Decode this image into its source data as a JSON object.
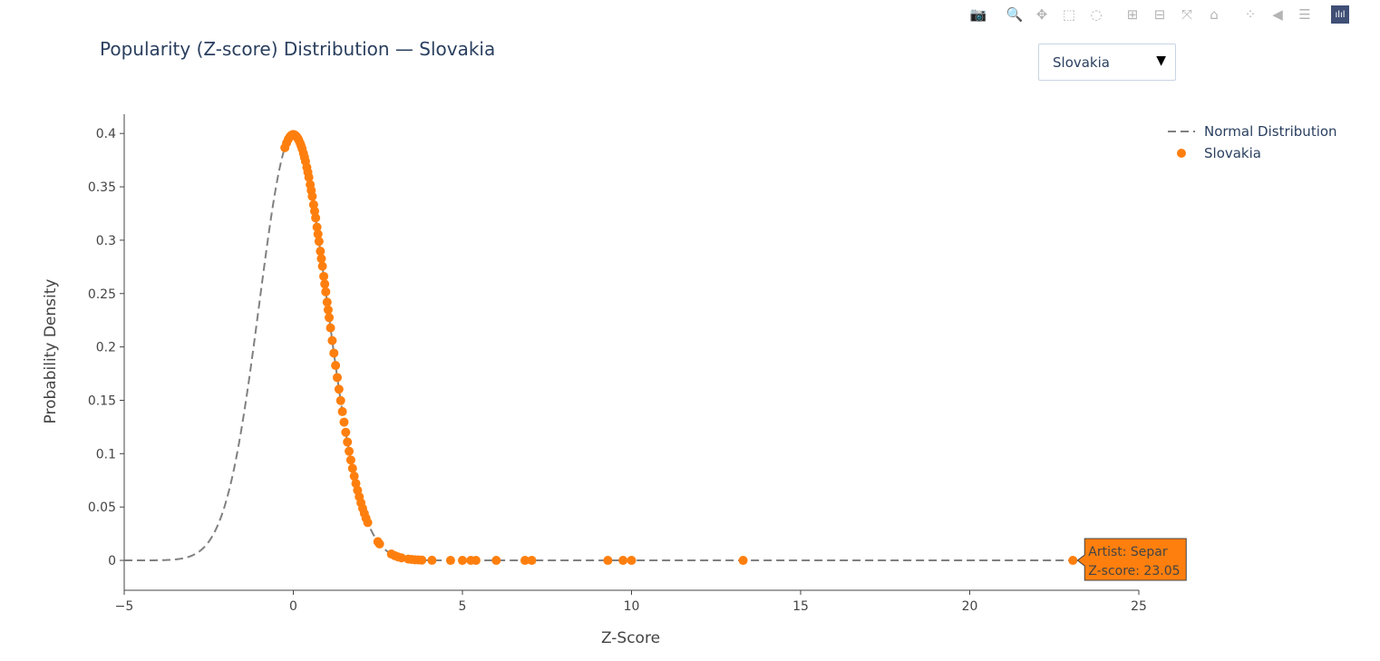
{
  "page": {
    "title": "Popularity (Z-score) Distribution — Slovakia",
    "dropdown": {
      "selected": "Slovakia",
      "arrow": "▼"
    }
  },
  "modebar": [
    {
      "name": "camera-icon",
      "glyph": "📷"
    },
    {
      "name": "zoom-icon",
      "glyph": "🔍"
    },
    {
      "name": "pan-icon",
      "glyph": "✥"
    },
    {
      "name": "box-select-icon",
      "glyph": "⬚"
    },
    {
      "name": "lasso-select-icon",
      "glyph": "◌"
    },
    {
      "name": "zoom-in-icon",
      "glyph": "⊞"
    },
    {
      "name": "zoom-out-icon",
      "glyph": "⊟"
    },
    {
      "name": "autoscale-icon",
      "glyph": "⤧"
    },
    {
      "name": "reset-axes-icon",
      "glyph": "⌂"
    },
    {
      "name": "spike-lines-icon",
      "glyph": "⁘"
    },
    {
      "name": "hover-closest-icon",
      "glyph": "◀"
    },
    {
      "name": "hover-compare-icon",
      "glyph": "☰"
    },
    {
      "name": "plotly-logo-icon",
      "glyph": "ılıl"
    }
  ],
  "chart_data": {
    "type": "scatter",
    "xlabel": "Z-Score",
    "ylabel": "Probability Density",
    "xlim": [
      -5,
      25
    ],
    "ylim": [
      -0.028,
      0.418
    ],
    "xticks": [
      -5,
      0,
      5,
      10,
      15,
      20,
      25
    ],
    "xtick_labels": [
      "−5",
      "0",
      "5",
      "10",
      "15",
      "20",
      "25"
    ],
    "yticks": [
      0,
      0.05,
      0.1,
      0.15,
      0.2,
      0.25,
      0.3,
      0.35,
      0.4
    ],
    "ytick_labels": [
      "0",
      "0.05",
      "0.1",
      "0.15",
      "0.2",
      "0.25",
      "0.3",
      "0.35",
      "0.4"
    ],
    "grid": false,
    "legend_position": "top-right",
    "series": [
      {
        "name": "Normal Distribution",
        "kind": "line",
        "dash": "dashed",
        "color": "#808080",
        "function": "standard normal pdf",
        "x_range": [
          -5,
          25
        ]
      },
      {
        "name": "Slovakia",
        "kind": "markers",
        "color": "#ff7f0e",
        "x": [
          -0.25,
          -0.2,
          -0.15,
          -0.1,
          -0.06,
          -0.03,
          0.0,
          0.03,
          0.06,
          0.1,
          0.13,
          0.16,
          0.2,
          0.23,
          0.26,
          0.3,
          0.33,
          0.36,
          0.4,
          0.43,
          0.46,
          0.5,
          0.53,
          0.56,
          0.6,
          0.63,
          0.66,
          0.7,
          0.73,
          0.76,
          0.8,
          0.83,
          0.86,
          0.9,
          0.93,
          0.96,
          1.0,
          1.03,
          1.06,
          1.1,
          1.15,
          1.2,
          1.25,
          1.3,
          1.35,
          1.4,
          1.45,
          1.5,
          1.55,
          1.6,
          1.65,
          1.7,
          1.75,
          1.8,
          1.85,
          1.9,
          1.95,
          2.0,
          2.05,
          2.1,
          2.15,
          2.2,
          2.5,
          2.55,
          2.9,
          3.0,
          3.1,
          3.2,
          3.4,
          3.5,
          3.6,
          3.7,
          3.8,
          4.1,
          4.65,
          5.0,
          5.25,
          5.4,
          6.0,
          6.85,
          7.05,
          9.3,
          9.75,
          10.0,
          13.3,
          23.05
        ]
      }
    ],
    "hover": {
      "artist_line": "Artist: Separ",
      "z_line": "Z-score: 23.05",
      "x": 23.05
    }
  }
}
